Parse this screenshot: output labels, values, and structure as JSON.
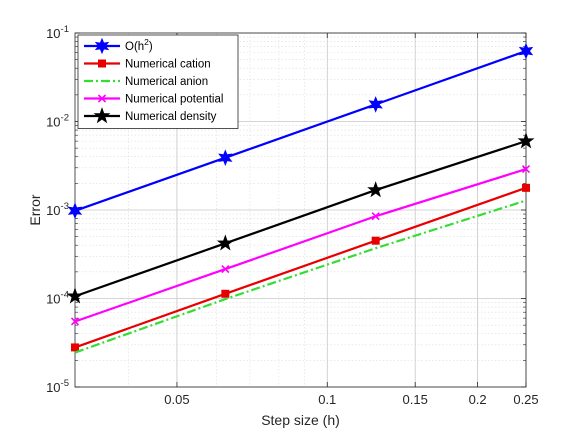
{
  "chart_data": {
    "type": "line",
    "xscale": "log",
    "yscale": "log",
    "xlabel": "Step size (h)",
    "ylabel": "Error",
    "xlim": [
      0.03125,
      0.25
    ],
    "ylim": [
      1e-05,
      0.1
    ],
    "grid": true,
    "legend_position": "top-left",
    "x_ticks": [
      {
        "value": 0.05,
        "label": "0.05"
      },
      {
        "value": 0.1,
        "label": "0.1"
      },
      {
        "value": 0.15,
        "label": "0.15"
      },
      {
        "value": 0.2,
        "label": "0.2"
      },
      {
        "value": 0.25,
        "label": "0.25"
      }
    ],
    "y_ticks": [
      {
        "value": 1e-05,
        "base": "10",
        "exp": "-5"
      },
      {
        "value": 0.0001,
        "base": "10",
        "exp": "-4"
      },
      {
        "value": 0.001,
        "base": "10",
        "exp": "-3"
      },
      {
        "value": 0.01,
        "base": "10",
        "exp": "-2"
      },
      {
        "value": 0.1,
        "base": "10",
        "exp": "-1"
      }
    ],
    "x": [
      0.03125,
      0.0625,
      0.125,
      0.25
    ],
    "series": [
      {
        "name": "O(h2)",
        "name_base": "O(h",
        "name_sup": "2",
        "name_tail": ")",
        "values": [
          0.00098,
          0.0039,
          0.0156,
          0.0625
        ],
        "color": "#0000ff",
        "marker": "star6",
        "dash": "solid"
      },
      {
        "name": "Numerical cation",
        "values": [
          2.8e-05,
          0.000113,
          0.00045,
          0.00178
        ],
        "color": "#e80000",
        "marker": "square",
        "dash": "solid"
      },
      {
        "name": "Numerical anion",
        "values": [
          2.45e-05,
          9.85e-05,
          0.00037,
          0.00128
        ],
        "color": "#33dd33",
        "marker": "none",
        "dash": "dashdot"
      },
      {
        "name": "Numerical potential",
        "values": [
          5.5e-05,
          0.000215,
          0.00085,
          0.0029
        ],
        "color": "#ff00ff",
        "marker": "x",
        "dash": "solid"
      },
      {
        "name": "Numerical density",
        "values": [
          0.000106,
          0.00042,
          0.00168,
          0.006
        ],
        "color": "#000000",
        "marker": "star5",
        "dash": "solid"
      }
    ]
  }
}
